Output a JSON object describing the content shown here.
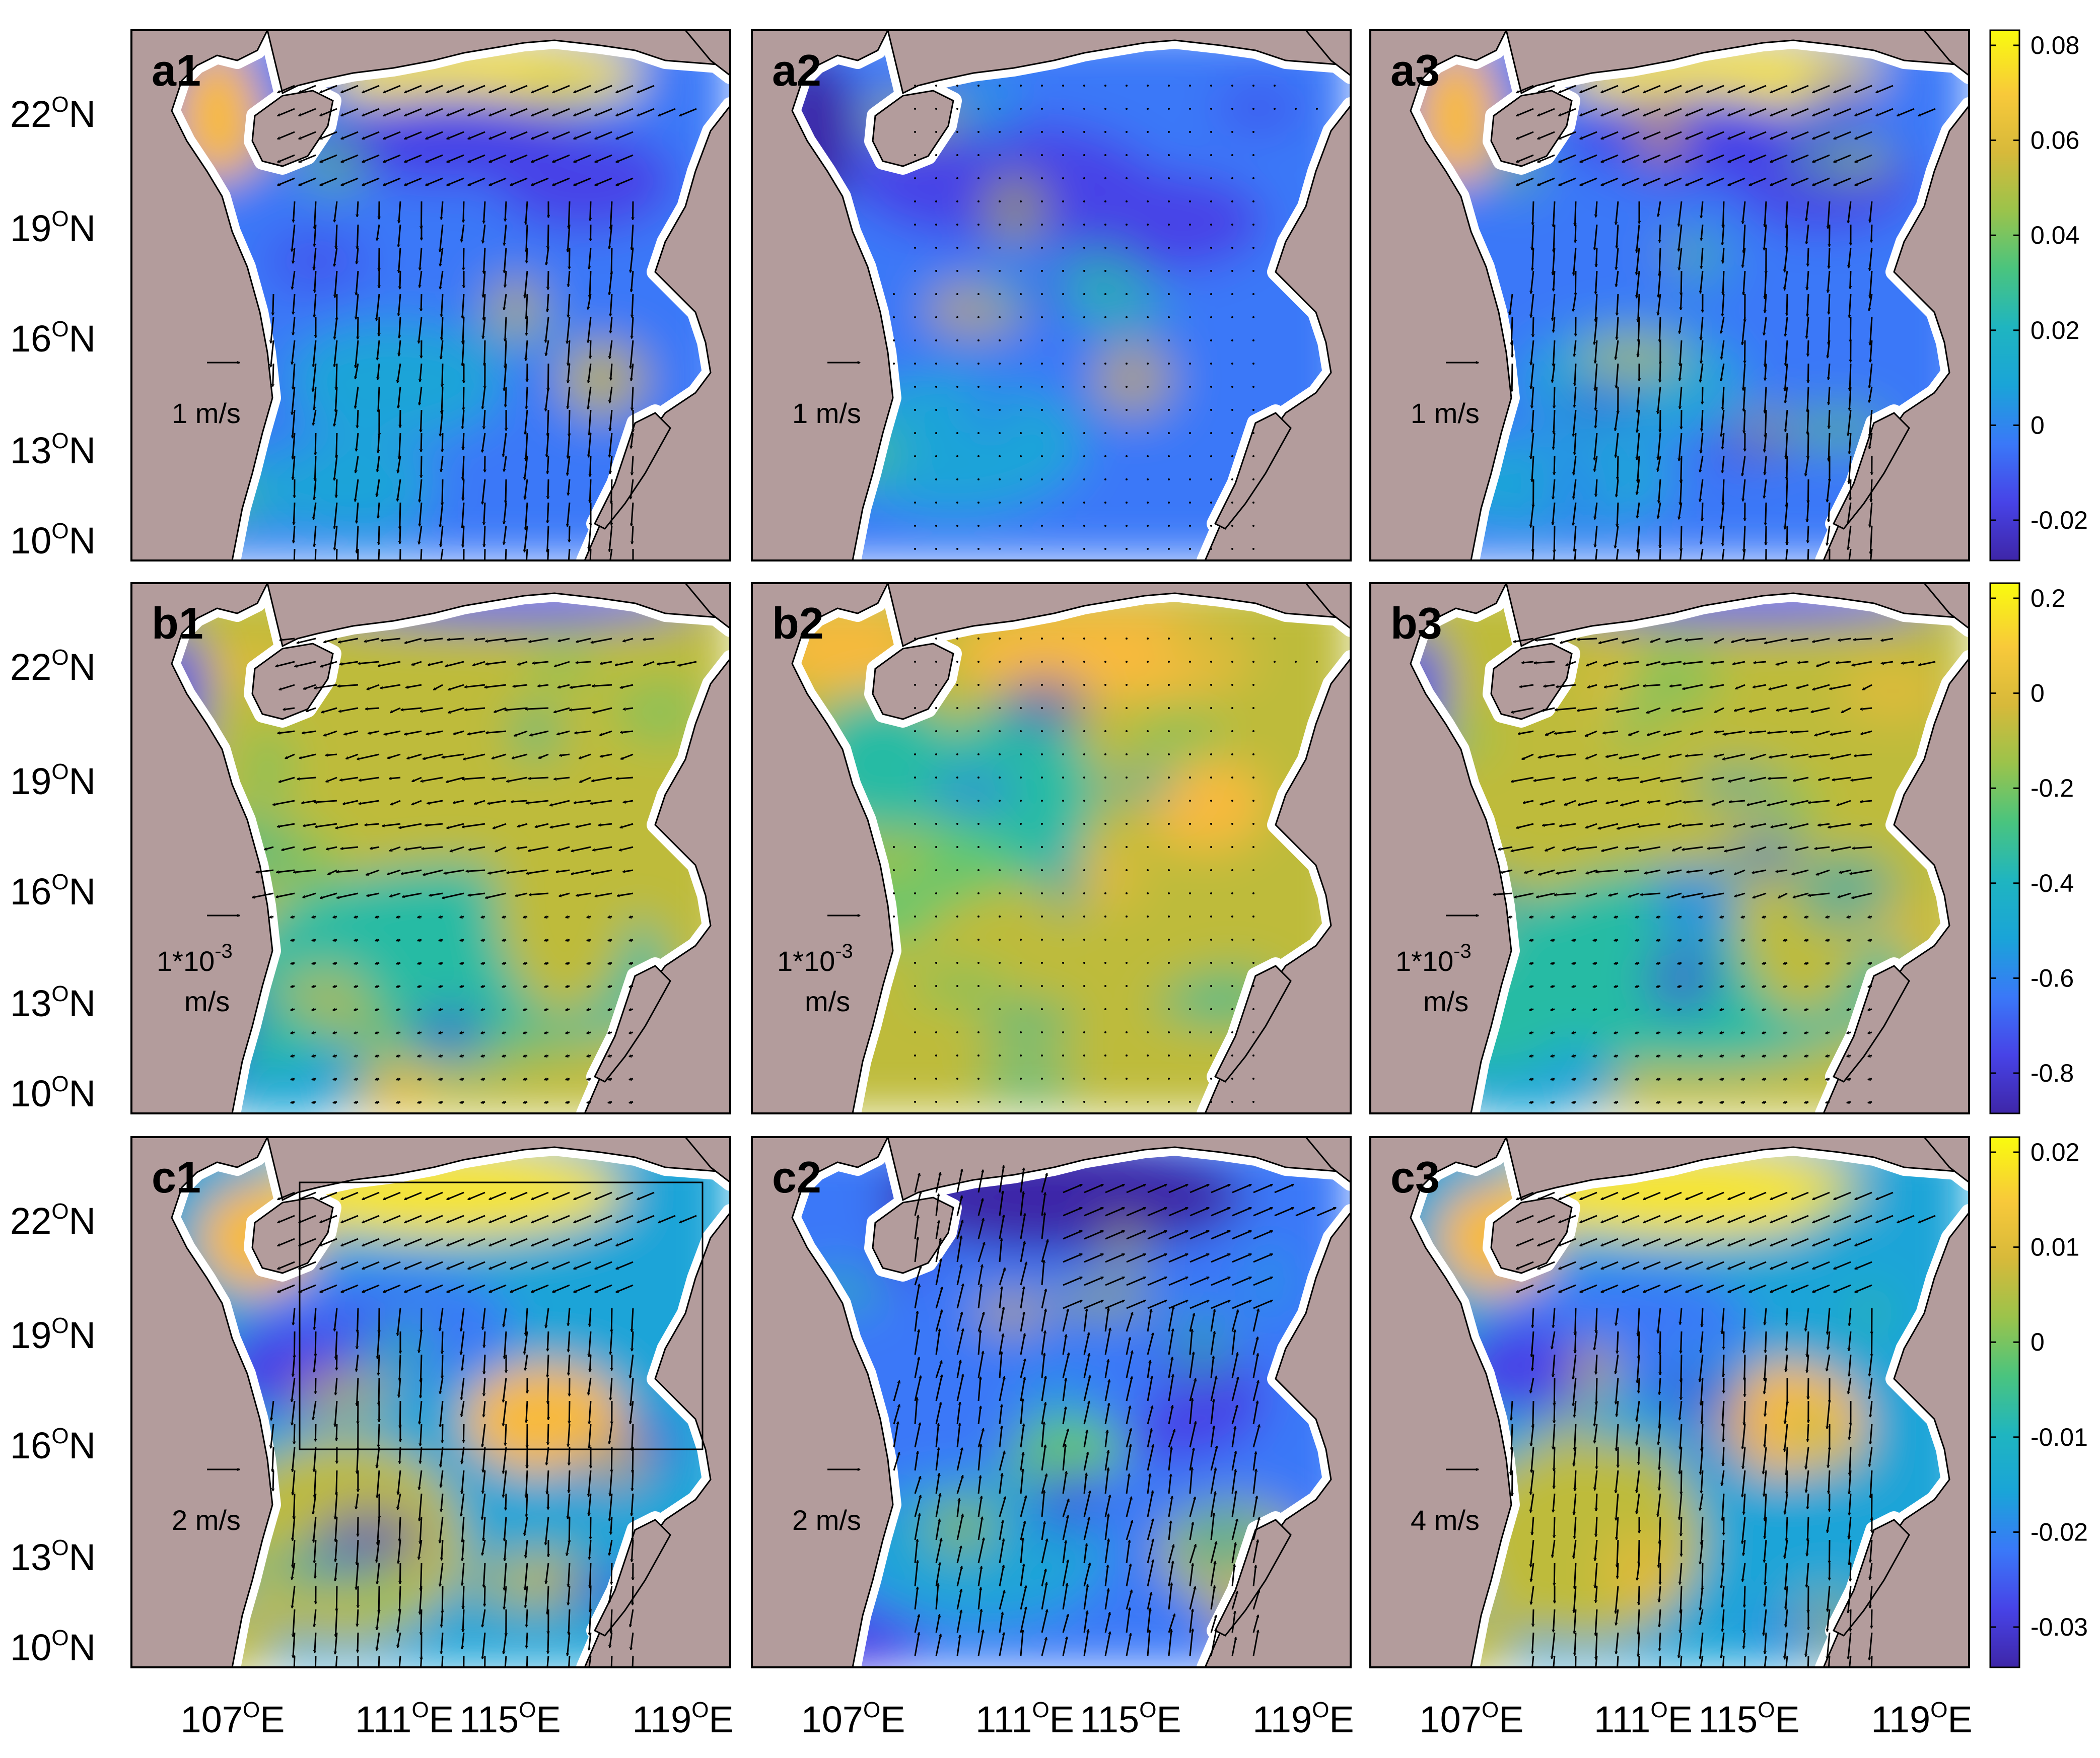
{
  "panels": [
    {
      "id": "a1",
      "row": 0,
      "col": 0,
      "scale_label": [
        "1 m/s"
      ],
      "field": "a_full",
      "vectors": "south",
      "box": false
    },
    {
      "id": "a2",
      "row": 0,
      "col": 1,
      "scale_label": [
        "1 m/s"
      ],
      "field": "a_low",
      "vectors": "tiny",
      "box": false
    },
    {
      "id": "a3",
      "row": 0,
      "col": 2,
      "scale_label": [
        "1 m/s"
      ],
      "field": "a_full",
      "vectors": "south",
      "box": false
    },
    {
      "id": "b1",
      "row": 1,
      "col": 0,
      "scale_label": [
        "1*10",
        "-3",
        "m/s"
      ],
      "field": "b_west",
      "vectors": "west",
      "box": false
    },
    {
      "id": "b2",
      "row": 1,
      "col": 1,
      "scale_label": [
        "1*10",
        "-3",
        "m/s"
      ],
      "field": "b_warm",
      "vectors": "tiny",
      "box": false
    },
    {
      "id": "b3",
      "row": 1,
      "col": 2,
      "scale_label": [
        "1*10",
        "-3",
        "m/s"
      ],
      "field": "b_west",
      "vectors": "west",
      "box": false
    },
    {
      "id": "c1",
      "row": 2,
      "col": 0,
      "scale_label": [
        "2 m/s"
      ],
      "field": "c_mix",
      "vectors": "south",
      "box": true
    },
    {
      "id": "c2",
      "row": 2,
      "col": 1,
      "scale_label": [
        "2 m/s"
      ],
      "field": "c_low",
      "vectors": "north",
      "box": false
    },
    {
      "id": "c3",
      "row": 2,
      "col": 2,
      "scale_label": [
        "4 m/s"
      ],
      "field": "c_mix",
      "vectors": "south",
      "box": false
    }
  ],
  "y_ticks": [
    {
      "deg": "22",
      "hemi": "N"
    },
    {
      "deg": "19",
      "hemi": "N"
    },
    {
      "deg": "16",
      "hemi": "N"
    },
    {
      "deg": "13",
      "hemi": "N"
    },
    {
      "deg": "10",
      "hemi": "N"
    }
  ],
  "x_ticks": [
    {
      "deg": "107",
      "hemi": "E"
    },
    {
      "deg": "111",
      "hemi": "E"
    },
    {
      "deg": "115",
      "hemi": "E"
    },
    {
      "deg": "119",
      "hemi": "E"
    }
  ],
  "degree_symbol": "O",
  "colorbars": [
    {
      "ticks": [
        "0.08",
        "0.06",
        "0.04",
        "0.02",
        "0",
        "-0.02"
      ]
    },
    {
      "ticks": [
        "0.2",
        "0",
        "-0.2",
        "-0.4",
        "-0.6",
        "-0.8"
      ]
    },
    {
      "ticks": [
        "0.02",
        "0.01",
        "0",
        "-0.01",
        "-0.02",
        "-0.03"
      ]
    }
  ],
  "colors": {
    "land": "#B39C9C",
    "parula": [
      "#3E26A8",
      "#4743E7",
      "#3A78F8",
      "#1AA4D8",
      "#27BBA4",
      "#65C76D",
      "#BEBB3A",
      "#F8BA3D",
      "#F7E52A",
      "#F9FB0E"
    ]
  },
  "icons": [
    "vector-arrow-icon",
    "coastline-icon"
  ]
}
